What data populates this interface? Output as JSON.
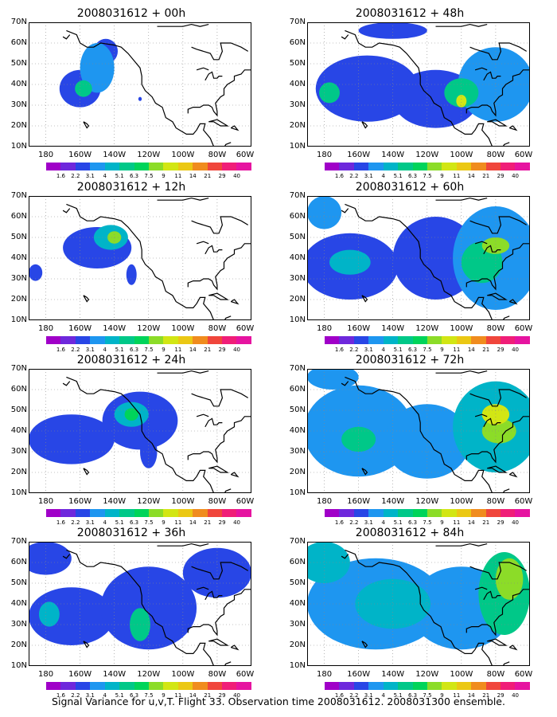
{
  "panels": [
    {
      "title": "2008031612 + 00h",
      "blobs": [
        {
          "lon": -160,
          "lat": 38,
          "rx": 12,
          "ry": 9,
          "level": 2
        },
        {
          "lon": -150,
          "lat": 48,
          "rx": 10,
          "ry": 12,
          "level": 3
        },
        {
          "lon": -145,
          "lat": 56,
          "rx": 7,
          "ry": 6,
          "level": 2
        },
        {
          "lon": -158,
          "lat": 38,
          "rx": 5,
          "ry": 4,
          "level": 5
        },
        {
          "lon": -125,
          "lat": 33,
          "rx": 1,
          "ry": 1,
          "level": 2
        }
      ]
    },
    {
      "title": "2008031612 + 48h",
      "blobs": [
        {
          "lon": -155,
          "lat": 38,
          "rx": 30,
          "ry": 16,
          "level": 2
        },
        {
          "lon": -115,
          "lat": 33,
          "rx": 25,
          "ry": 14,
          "level": 2
        },
        {
          "lon": -80,
          "lat": 40,
          "rx": 22,
          "ry": 18,
          "level": 3
        },
        {
          "lon": -177,
          "lat": 36,
          "rx": 6,
          "ry": 5,
          "level": 5
        },
        {
          "lon": -100,
          "lat": 36,
          "rx": 10,
          "ry": 7,
          "level": 5
        },
        {
          "lon": -100,
          "lat": 32,
          "rx": 3,
          "ry": 3,
          "level": 8
        },
        {
          "lon": -140,
          "lat": 66,
          "rx": 20,
          "ry": 4,
          "level": 2
        }
      ]
    },
    {
      "title": "2008031612 + 12h",
      "blobs": [
        {
          "lon": -150,
          "lat": 45,
          "rx": 20,
          "ry": 10,
          "level": 2
        },
        {
          "lon": -142,
          "lat": 50,
          "rx": 10,
          "ry": 6,
          "level": 4
        },
        {
          "lon": -140,
          "lat": 50,
          "rx": 4,
          "ry": 3,
          "level": 7
        },
        {
          "lon": -186,
          "lat": 33,
          "rx": 4,
          "ry": 4,
          "level": 2
        },
        {
          "lon": -130,
          "lat": 32,
          "rx": 3,
          "ry": 5,
          "level": 2
        }
      ]
    },
    {
      "title": "2008031612 + 60h",
      "blobs": [
        {
          "lon": -165,
          "lat": 36,
          "rx": 28,
          "ry": 16,
          "level": 2
        },
        {
          "lon": -115,
          "lat": 40,
          "rx": 25,
          "ry": 20,
          "level": 2
        },
        {
          "lon": -80,
          "lat": 40,
          "rx": 25,
          "ry": 25,
          "level": 3
        },
        {
          "lon": -165,
          "lat": 38,
          "rx": 12,
          "ry": 6,
          "level": 4
        },
        {
          "lon": -88,
          "lat": 38,
          "rx": 12,
          "ry": 10,
          "level": 5
        },
        {
          "lon": -80,
          "lat": 46,
          "rx": 8,
          "ry": 4,
          "level": 7
        },
        {
          "lon": -180,
          "lat": 62,
          "rx": 10,
          "ry": 8,
          "level": 3
        }
      ]
    },
    {
      "title": "2008031612 + 24h",
      "blobs": [
        {
          "lon": -165,
          "lat": 36,
          "rx": 25,
          "ry": 12,
          "level": 2
        },
        {
          "lon": -125,
          "lat": 45,
          "rx": 22,
          "ry": 14,
          "level": 2
        },
        {
          "lon": -130,
          "lat": 48,
          "rx": 10,
          "ry": 6,
          "level": 4
        },
        {
          "lon": -130,
          "lat": 48,
          "rx": 4,
          "ry": 3,
          "level": 6
        },
        {
          "lon": -120,
          "lat": 30,
          "rx": 5,
          "ry": 8,
          "level": 2
        }
      ]
    },
    {
      "title": "2008031612 + 72h",
      "blobs": [
        {
          "lon": -160,
          "lat": 40,
          "rx": 32,
          "ry": 22,
          "level": 3
        },
        {
          "lon": -120,
          "lat": 35,
          "rx": 25,
          "ry": 18,
          "level": 3
        },
        {
          "lon": -80,
          "lat": 42,
          "rx": 25,
          "ry": 22,
          "level": 4
        },
        {
          "lon": -160,
          "lat": 36,
          "rx": 10,
          "ry": 6,
          "level": 5
        },
        {
          "lon": -78,
          "lat": 40,
          "rx": 10,
          "ry": 6,
          "level": 7
        },
        {
          "lon": -80,
          "lat": 48,
          "rx": 8,
          "ry": 5,
          "level": 8
        },
        {
          "lon": -175,
          "lat": 66,
          "rx": 15,
          "ry": 6,
          "level": 3
        }
      ]
    },
    {
      "title": "2008031612 + 36h",
      "blobs": [
        {
          "lon": -165,
          "lat": 34,
          "rx": 25,
          "ry": 14,
          "level": 2
        },
        {
          "lon": -120,
          "lat": 38,
          "rx": 28,
          "ry": 20,
          "level": 2
        },
        {
          "lon": -178,
          "lat": 35,
          "rx": 6,
          "ry": 6,
          "level": 4
        },
        {
          "lon": -125,
          "lat": 30,
          "rx": 6,
          "ry": 8,
          "level": 5
        },
        {
          "lon": -80,
          "lat": 55,
          "rx": 20,
          "ry": 12,
          "level": 2
        },
        {
          "lon": -180,
          "lat": 62,
          "rx": 15,
          "ry": 8,
          "level": 2
        }
      ]
    },
    {
      "title": "2008031612 + 84h",
      "blobs": [
        {
          "lon": -150,
          "lat": 40,
          "rx": 40,
          "ry": 22,
          "level": 3
        },
        {
          "lon": -100,
          "lat": 38,
          "rx": 30,
          "ry": 20,
          "level": 3
        },
        {
          "lon": -140,
          "lat": 40,
          "rx": 22,
          "ry": 12,
          "level": 4
        },
        {
          "lon": -180,
          "lat": 60,
          "rx": 15,
          "ry": 10,
          "level": 4
        },
        {
          "lon": -75,
          "lat": 45,
          "rx": 15,
          "ry": 20,
          "level": 5
        },
        {
          "lon": -72,
          "lat": 52,
          "rx": 8,
          "ry": 10,
          "level": 7
        }
      ]
    }
  ],
  "lat_ticks": [
    "70N",
    "60N",
    "50N",
    "40N",
    "30N",
    "20N",
    "10N"
  ],
  "lon_ticks": [
    "180",
    "160W",
    "140W",
    "120W",
    "100W",
    "80W",
    "60W"
  ],
  "colorbar": {
    "labels": [
      "1.6",
      "2.2",
      "3.1",
      "4",
      "5.1",
      "6.3",
      "7.5",
      "9",
      "11",
      "14",
      "21",
      "29",
      "40"
    ],
    "colors": [
      "#a000c8",
      "#6e28dc",
      "#2846e6",
      "#1e96f0",
      "#00b4c8",
      "#00c888",
      "#00d45a",
      "#8cdc28",
      "#d2e614",
      "#ebc814",
      "#f08c1e",
      "#f0463c",
      "#f01e78",
      "#e614a0"
    ]
  },
  "caption": "Signal Variance for u,v,T. Flight 33. Observation time 2008031612. 2008031300 ensemble."
}
